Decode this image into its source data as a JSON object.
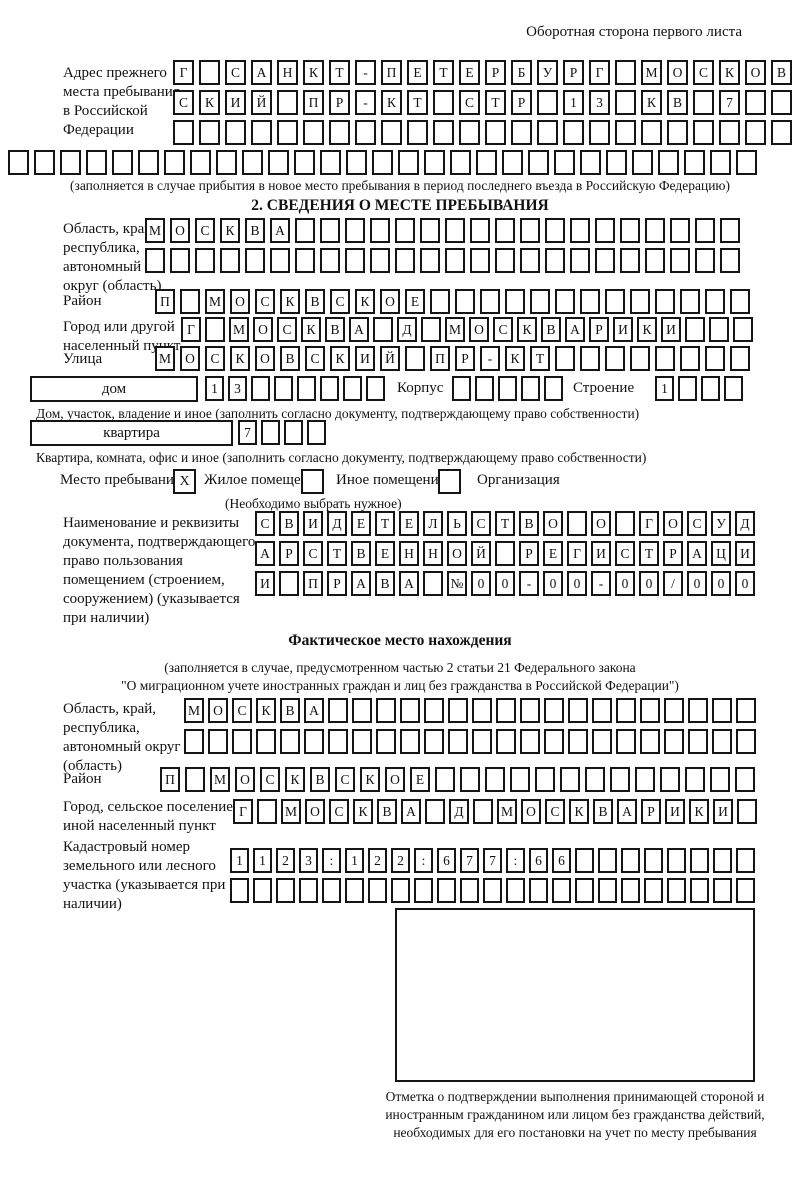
{
  "header": {
    "right": "Оборотная сторона первого листа"
  },
  "prev_address": {
    "label": "Адрес прежнего места пребывания в Российской Федерации",
    "rows": [
      {
        "text": "Г САНКТ-ПЕТЕРБУРГ МОСКОВ",
        "n": 24
      },
      {
        "text": "СКИЙ ПР-КТ СТР 13 КВ 7",
        "n": 24
      },
      {
        "text": "",
        "n": 24
      },
      {
        "text": "",
        "n": 29
      }
    ],
    "note": "(заполняется в случае прибытия в новое место пребывания в период последнего въезда в Российскую Федерацию)"
  },
  "section2": {
    "title": "2. СВЕДЕНИЯ О МЕСТЕ ПРЕБЫВАНИЯ",
    "region": {
      "label": "Область, край, республика, автономный округ (область)",
      "rows": [
        {
          "text": "МОСКВА",
          "n": 24
        },
        {
          "text": "",
          "n": 24
        }
      ]
    },
    "district": {
      "label": "Район",
      "row": {
        "text": "П МОСКВСКОЕ",
        "n": 24
      }
    },
    "city": {
      "label": "Город или другой населенный пункт",
      "row": {
        "text": "Г МОСКВА Д МОСКВАРИКИ",
        "n": 24
      }
    },
    "street": {
      "label": "Улица",
      "row": {
        "text": "МОСКОВСКИЙ ПР-КТ",
        "n": 24
      }
    },
    "house": {
      "box_label": "дом",
      "cells": {
        "text": "13",
        "n": 8
      },
      "korpus_label": "Корпус",
      "korpus_cells": {
        "text": "",
        "n": 5
      },
      "stroenie_label": "Строение",
      "stroenie_cells": {
        "text": "1",
        "n": 4
      },
      "note": "Дом, участок, владение и иное (заполнить согласно документу, подтверждающему право собственности)"
    },
    "apartment": {
      "box_label": "квартира",
      "cells": {
        "text": "7",
        "n": 4
      },
      "note": "Квартира, комната, офис и иное (заполнить согласно документу, подтверждающему право собственности)"
    },
    "stay_type": {
      "label": "Место пребывания:",
      "options": [
        {
          "mark": "X",
          "label": "Жилое помещение"
        },
        {
          "mark": "",
          "label": "Иное помещение"
        },
        {
          "mark": "",
          "label": "Организация"
        }
      ],
      "note": "(Необходимо выбрать нужное)"
    },
    "document": {
      "label": "Наименование и реквизиты документа, подтверждающего право пользования помещением (строением, сооружением) (указывается при наличии)",
      "rows": [
        {
          "text": "СВИДЕТЕЛЬСТВО О ГОСУД",
          "n": 21
        },
        {
          "text": "АРСТВЕННОЙ РЕГИСТРАЦИ",
          "n": 21
        },
        {
          "text": "И ПРАВА №00-00-00/000",
          "n": 21
        }
      ]
    }
  },
  "actual_location": {
    "title": "Фактическое место нахождения",
    "note_line1": "(заполняется в случае, предусмотренном частью 2 статьи 21 Федерального закона",
    "note_line2": "\"О миграционном учете иностранных граждан и лиц без гражданства в Российской Федерации\")",
    "region": {
      "label": "Область, край, республика, автономный округ (область)",
      "rows": [
        {
          "text": "МОСКВА",
          "n": 24
        },
        {
          "text": "",
          "n": 24
        }
      ]
    },
    "district": {
      "label": "Район",
      "row": {
        "text": "П МОСКВСКОЕ",
        "n": 24
      }
    },
    "city": {
      "label": "Город, сельское поселение, иной населенный пункт",
      "row": {
        "text": "Г МОСКВА Д МОСКВАРИКИ",
        "n": 22
      }
    },
    "cadastral": {
      "label": "Кадастровый номер земельного или лесного участка (указывается при наличии)",
      "rows": [
        {
          "text": "1123:122:677:66",
          "n": 23
        },
        {
          "text": "",
          "n": 23
        }
      ]
    }
  },
  "confirmation": {
    "note": "Отметка о подтверждении выполнения принимающей стороной и иностранным гражданином или лицом без гражданства действий, необходимых для его постановки на учет по месту пребывания"
  }
}
